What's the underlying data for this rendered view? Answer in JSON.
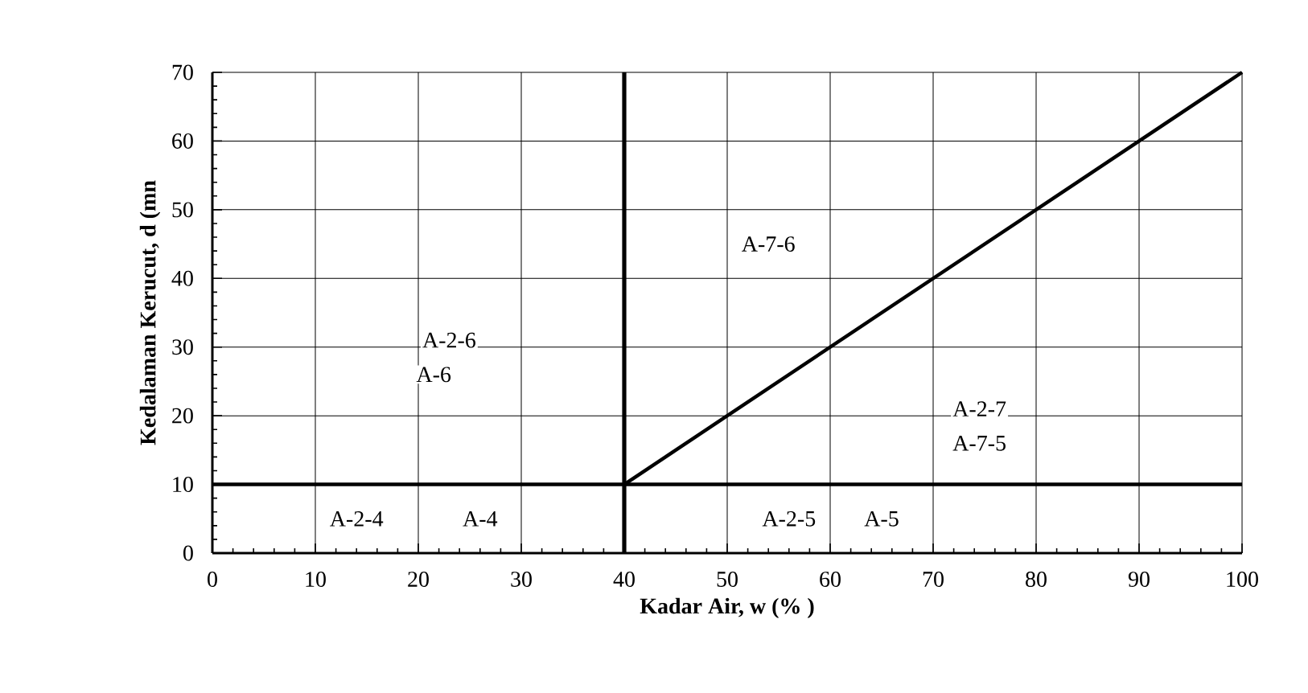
{
  "chart_data": {
    "type": "line",
    "xlabel": "Kadar Air, w (% )",
    "ylabel": "Kedalaman Kerucut, d (mn",
    "xlim": [
      0,
      100
    ],
    "ylim": [
      0,
      70
    ],
    "xticks": [
      0,
      10,
      20,
      30,
      40,
      50,
      60,
      70,
      80,
      90,
      100
    ],
    "yticks": [
      0,
      10,
      20,
      30,
      40,
      50,
      60,
      70
    ],
    "grid": true,
    "line_style": "solid",
    "marker": "none",
    "series": [
      {
        "color": "#000000",
        "x": [
          40,
          100
        ],
        "values": [
          10,
          70
        ]
      }
    ],
    "ref_lines": [
      {
        "axis": "x",
        "value": 40,
        "color": "#000000"
      },
      {
        "axis": "y",
        "value": 10,
        "color": "#000000"
      }
    ],
    "annotations": [
      {
        "text": "A-2-6",
        "x": 23,
        "y": 31
      },
      {
        "text": "A-6",
        "x": 21.5,
        "y": 26
      },
      {
        "text": "A-2-4",
        "x": 14,
        "y": 5
      },
      {
        "text": "A-4",
        "x": 26,
        "y": 5
      },
      {
        "text": "A-7-6",
        "x": 54,
        "y": 45
      },
      {
        "text": "A-2-5",
        "x": 56,
        "y": 5
      },
      {
        "text": "A-5",
        "x": 65,
        "y": 5
      },
      {
        "text": "A-2-7",
        "x": 74.5,
        "y": 21
      },
      {
        "text": "A-7-5",
        "x": 74.5,
        "y": 16
      }
    ]
  }
}
